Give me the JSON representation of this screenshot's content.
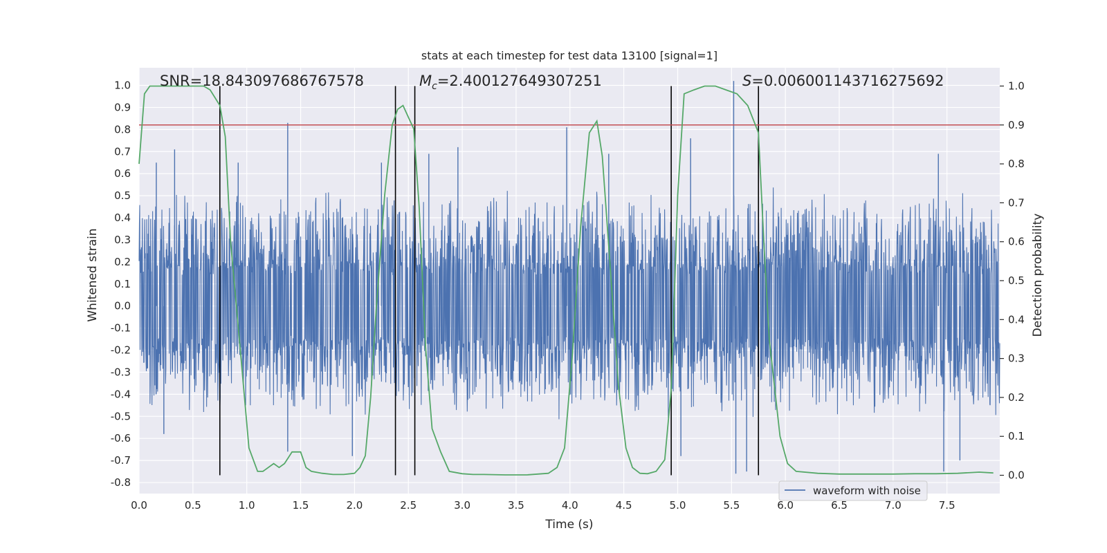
{
  "chart_data": {
    "type": "line",
    "title": "stats at each timestep for test data 13100 [signal=1]",
    "xlabel": "Time (s)",
    "ylabel_left": "Whitened strain",
    "ylabel_right": "Detection probability",
    "xlim": [
      0.0,
      7.99
    ],
    "ylim_left": [
      -0.85,
      1.08
    ],
    "ylim_right": [
      -0.047,
      1.047
    ],
    "x_ticks": [
      "0.0",
      "0.5",
      "1.0",
      "1.5",
      "2.0",
      "2.5",
      "3.0",
      "3.5",
      "4.0",
      "4.5",
      "5.0",
      "5.5",
      "6.0",
      "6.5",
      "7.0",
      "7.5"
    ],
    "y_ticks_left": [
      "1.0",
      "0.9",
      "0.8",
      "0.7",
      "0.6",
      "0.5",
      "0.4",
      "0.3",
      "0.2",
      "0.1",
      "0.0",
      "-0.1",
      "-0.2",
      "-0.3",
      "-0.4",
      "-0.5",
      "-0.6",
      "-0.7",
      "-0.8"
    ],
    "y_ticks_right": [
      "1.0",
      "0.9",
      "0.8",
      "0.7",
      "0.6",
      "0.5",
      "0.4",
      "0.3",
      "0.2",
      "0.1",
      "0.0"
    ],
    "grid": true,
    "legend_position": "lower-right",
    "annotations": {
      "snr": "SNR=18.843097686767578",
      "mc_sub": "c",
      "mc_value": "=2.400127649307251",
      "s_value": "=0.006001143716275692"
    },
    "threshold": {
      "axis": "right",
      "value": 0.9,
      "color": "#c44e52"
    },
    "vertical_lines_s": [
      0.75,
      2.38,
      2.56,
      4.94,
      5.75
    ],
    "waveform": {
      "name": "waveform with noise",
      "color": "#4c72b0",
      "envelope_typical": [
        -0.45,
        0.47
      ],
      "spikes": [
        [
          0.33,
          0.71
        ],
        [
          0.16,
          0.65
        ],
        [
          0.23,
          -0.58
        ],
        [
          1.38,
          0.83
        ],
        [
          1.38,
          -0.66
        ],
        [
          0.92,
          0.65
        ],
        [
          2.25,
          0.65
        ],
        [
          2.69,
          0.69
        ],
        [
          2.96,
          0.72
        ],
        [
          3.97,
          0.81
        ],
        [
          4.36,
          0.69
        ],
        [
          5.12,
          0.76
        ],
        [
          5.52,
          1.02
        ],
        [
          5.54,
          -0.76
        ],
        [
          5.64,
          -0.75
        ],
        [
          7.42,
          0.69
        ],
        [
          7.47,
          -0.75
        ],
        [
          7.62,
          -0.7
        ],
        [
          5.03,
          -0.68
        ],
        [
          1.98,
          -0.68
        ]
      ]
    },
    "detection_probability": {
      "color": "#55a868",
      "x": [
        0.0,
        0.05,
        0.1,
        0.2,
        0.3,
        0.4,
        0.5,
        0.6,
        0.66,
        0.75,
        0.8,
        0.85,
        0.95,
        1.02,
        1.1,
        1.15,
        1.25,
        1.3,
        1.35,
        1.42,
        1.5,
        1.55,
        1.6,
        1.7,
        1.8,
        1.9,
        2.0,
        2.05,
        2.1,
        2.15,
        2.2,
        2.28,
        2.35,
        2.4,
        2.45,
        2.5,
        2.55,
        2.6,
        2.66,
        2.72,
        2.8,
        2.88,
        3.0,
        3.1,
        3.2,
        3.4,
        3.6,
        3.8,
        3.88,
        3.95,
        4.02,
        4.1,
        4.18,
        4.25,
        4.3,
        4.37,
        4.45,
        4.52,
        4.58,
        4.65,
        4.72,
        4.8,
        4.88,
        4.94,
        5.0,
        5.06,
        5.15,
        5.25,
        5.35,
        5.45,
        5.55,
        5.65,
        5.75,
        5.8,
        5.85,
        5.95,
        6.02,
        6.1,
        6.3,
        6.5,
        6.8,
        7.0,
        7.2,
        7.4,
        7.6,
        7.8,
        7.93
      ],
      "y": [
        0.8,
        0.98,
        1.0,
        1.0,
        1.0,
        1.0,
        1.0,
        1.0,
        0.99,
        0.95,
        0.87,
        0.6,
        0.29,
        0.07,
        0.01,
        0.01,
        0.03,
        0.02,
        0.03,
        0.06,
        0.06,
        0.02,
        0.01,
        0.005,
        0.002,
        0.002,
        0.005,
        0.02,
        0.05,
        0.2,
        0.42,
        0.72,
        0.9,
        0.94,
        0.95,
        0.92,
        0.89,
        0.69,
        0.33,
        0.12,
        0.06,
        0.01,
        0.004,
        0.002,
        0.002,
        0.001,
        0.001,
        0.005,
        0.02,
        0.07,
        0.3,
        0.64,
        0.88,
        0.91,
        0.82,
        0.55,
        0.23,
        0.07,
        0.02,
        0.005,
        0.004,
        0.01,
        0.04,
        0.22,
        0.72,
        0.98,
        0.99,
        1.0,
        1.0,
        0.99,
        0.98,
        0.95,
        0.88,
        0.6,
        0.35,
        0.1,
        0.03,
        0.01,
        0.005,
        0.003,
        0.003,
        0.003,
        0.004,
        0.004,
        0.005,
        0.008,
        0.006
      ]
    }
  }
}
